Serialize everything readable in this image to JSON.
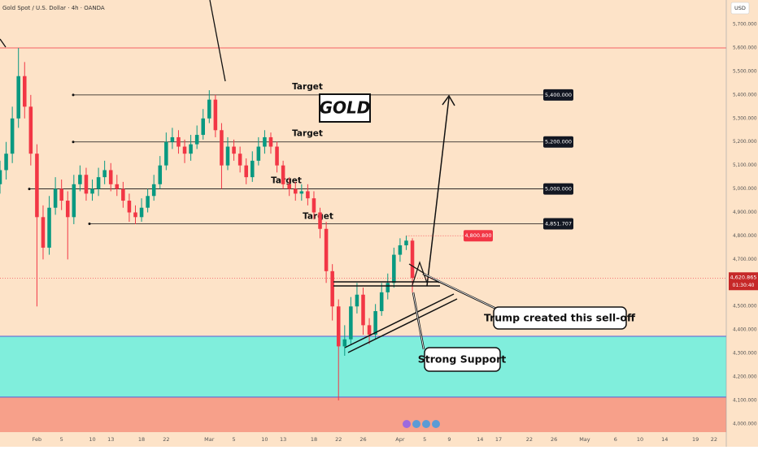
{
  "chart_data": {
    "type": "candlestick",
    "title": "Gold Spot / U.S. Dollar · 4h · OANDA",
    "currency": "USD",
    "brand": "GOLD",
    "x": [
      "01-26",
      "01-27",
      "01-28",
      "01-29",
      "01-30",
      "01-31",
      "02-01",
      "02-02",
      "02-03",
      "02-04",
      "02-05",
      "02-06",
      "02-07",
      "02-08",
      "02-09",
      "02-10",
      "02-11",
      "02-12",
      "02-13",
      "02-14",
      "02-15",
      "02-16",
      "02-17",
      "02-18",
      "02-19",
      "02-20",
      "02-21",
      "02-22",
      "02-23",
      "02-24",
      "02-25",
      "02-26",
      "02-27",
      "02-28",
      "03-01",
      "03-02",
      "03-03",
      "03-04",
      "03-05",
      "03-06",
      "03-07",
      "03-08",
      "03-09",
      "03-10",
      "03-11",
      "03-12",
      "03-13",
      "03-14",
      "03-15",
      "03-16",
      "03-17",
      "03-18",
      "03-19",
      "03-20",
      "03-21",
      "03-22",
      "03-23",
      "03-24",
      "03-25",
      "03-26",
      "03-27",
      "03-28",
      "03-29",
      "03-30",
      "03-31",
      "04-01",
      "04-02",
      "04-03"
    ],
    "open": [
      5020,
      5080,
      5150,
      5300,
      5480,
      5350,
      5150,
      4880,
      4750,
      4920,
      5000,
      4950,
      4880,
      5020,
      5060,
      4980,
      5000,
      5050,
      5080,
      5020,
      5000,
      4950,
      4900,
      4880,
      4920,
      4970,
      5020,
      5100,
      5200,
      5220,
      5180,
      5150,
      5190,
      5230,
      5300,
      5380,
      5250,
      5100,
      5180,
      5150,
      5100,
      5050,
      5120,
      5180,
      5220,
      5180,
      5100,
      5020,
      5000,
      4980,
      4990,
      4960,
      4900,
      4830,
      4650,
      4500,
      4330,
      4360,
      4500,
      4550,
      4420,
      4380,
      4480,
      4560,
      4600,
      4720,
      4760,
      4780
    ],
    "high": [
      5120,
      5200,
      5350,
      5600,
      5540,
      5400,
      5190,
      4930,
      4970,
      5050,
      5040,
      4990,
      5060,
      5100,
      5090,
      5040,
      5090,
      5120,
      5110,
      5060,
      5030,
      4980,
      4930,
      4960,
      5000,
      5060,
      5140,
      5240,
      5260,
      5250,
      5210,
      5230,
      5270,
      5340,
      5420,
      5400,
      5280,
      5220,
      5210,
      5180,
      5130,
      5160,
      5220,
      5250,
      5240,
      5200,
      5120,
      5050,
      5030,
      5020,
      5020,
      4990,
      4920,
      4860,
      4680,
      4530,
      4420,
      4540,
      4600,
      4580,
      4450,
      4510,
      4600,
      4640,
      4750,
      4790,
      4800.8,
      4790
    ],
    "low": [
      4980,
      5040,
      5110,
      5260,
      5300,
      5100,
      4500,
      4700,
      4720,
      4890,
      4910,
      4700,
      4850,
      4990,
      4950,
      4950,
      4970,
      5020,
      4990,
      4970,
      4920,
      4860,
      4850,
      4860,
      4900,
      4950,
      5000,
      5080,
      5170,
      5150,
      5110,
      5120,
      5170,
      5210,
      5280,
      5220,
      5000,
      5080,
      5120,
      5070,
      5020,
      5030,
      5100,
      5150,
      5150,
      5070,
      5000,
      4970,
      4950,
      4950,
      4930,
      4870,
      4790,
      4600,
      4440,
      4100,
      4290,
      4340,
      4470,
      4380,
      4340,
      4360,
      4460,
      4530,
      4580,
      4690,
      4740,
      4560
    ],
    "close": [
      5080,
      5150,
      5300,
      5480,
      5350,
      5150,
      4880,
      4750,
      4920,
      5000,
      4950,
      4880,
      5020,
      5060,
      4980,
      5000,
      5050,
      5080,
      5020,
      5000,
      4950,
      4900,
      4880,
      4920,
      4970,
      5020,
      5100,
      5200,
      5220,
      5180,
      5150,
      5190,
      5230,
      5300,
      5380,
      5250,
      5100,
      5180,
      5150,
      5100,
      5050,
      5120,
      5180,
      5220,
      5180,
      5100,
      5020,
      5000,
      4980,
      4990,
      4960,
      4900,
      4830,
      4650,
      4500,
      4330,
      4360,
      4500,
      4550,
      4420,
      4380,
      4480,
      4560,
      4600,
      4720,
      4760,
      4780,
      4621
    ],
    "up_color": "#089981",
    "down_color": "#f23645",
    "xlim": [
      "01-26",
      "05-24"
    ],
    "ylim": [
      3965,
      5804
    ],
    "xticks": [
      {
        "value": "02-01",
        "label": "Feb"
      },
      {
        "value": "02-05",
        "label": "5"
      },
      {
        "value": "02-10",
        "label": "10"
      },
      {
        "value": "02-13",
        "label": "13"
      },
      {
        "value": "02-18",
        "label": "18"
      },
      {
        "value": "02-22",
        "label": "22"
      },
      {
        "value": "03-01",
        "label": "Mar"
      },
      {
        "value": "03-05",
        "label": "5"
      },
      {
        "value": "03-10",
        "label": "10"
      },
      {
        "value": "03-13",
        "label": "13"
      },
      {
        "value": "03-18",
        "label": "18"
      },
      {
        "value": "03-22",
        "label": "22"
      },
      {
        "value": "03-26",
        "label": "26"
      },
      {
        "value": "04-01",
        "label": "Apr"
      },
      {
        "value": "04-05",
        "label": "5"
      },
      {
        "value": "04-09",
        "label": "9"
      },
      {
        "value": "04-14",
        "label": "14"
      },
      {
        "value": "04-17",
        "label": "17"
      },
      {
        "value": "04-22",
        "label": "22"
      },
      {
        "value": "04-26",
        "label": "26"
      },
      {
        "value": "05-01",
        "label": "May"
      },
      {
        "value": "05-06",
        "label": "6"
      },
      {
        "value": "05-10",
        "label": "10"
      },
      {
        "value": "05-14",
        "label": "14"
      },
      {
        "value": "05-19",
        "label": "19"
      },
      {
        "value": "05-22",
        "label": "22"
      }
    ],
    "yticks": [
      {
        "value": 4000,
        "label": "4,000.000"
      },
      {
        "value": 4100,
        "label": "4,100.000"
      },
      {
        "value": 4200,
        "label": "4,200.000"
      },
      {
        "value": 4300,
        "label": "4,300.000"
      },
      {
        "value": 4400,
        "label": "4,400.000"
      },
      {
        "value": 4500,
        "label": "4,500.000"
      },
      {
        "value": 4600,
        "label": "4,600.000"
      },
      {
        "value": 4700,
        "label": "4,700.000"
      },
      {
        "value": 4800,
        "label": "4,800.000"
      },
      {
        "value": 4900,
        "label": "4,900.000"
      },
      {
        "value": 5000,
        "label": "5,000.000"
      },
      {
        "value": 5100,
        "label": "5,100.000"
      },
      {
        "value": 5200,
        "label": "5,200.000"
      },
      {
        "value": 5300,
        "label": "5,300.000"
      },
      {
        "value": 5400,
        "label": "5,400.000"
      },
      {
        "value": 5500,
        "label": "5,500.000"
      },
      {
        "value": 5600,
        "label": "5,600.000"
      },
      {
        "value": 5700,
        "label": "5,700.000"
      }
    ],
    "levels": [
      {
        "value": 5400,
        "label": "5,400.000",
        "tag": "Target"
      },
      {
        "value": 5200,
        "label": "5,200.000",
        "tag": "Target"
      },
      {
        "value": 5000,
        "label": "5,000.000",
        "tag": "Target"
      },
      {
        "value": 4851.707,
        "label": "4,851.707",
        "tag": "Target"
      }
    ],
    "zones": [
      {
        "from": 4373,
        "to": 4114,
        "color": "#80eedc"
      },
      {
        "from": 4114,
        "to": 3965,
        "color": "#f7a08a"
      }
    ],
    "resistance": {
      "value": 5600,
      "color": "#f23645"
    },
    "high_tag": {
      "value": 4800.8,
      "label": "4,800.800"
    },
    "price_tag": {
      "value": 4620.865,
      "label": "4,620.865",
      "countdown": "01:30:40"
    },
    "annotations": [
      "Trump created this sell-off",
      "Strong Support"
    ]
  }
}
